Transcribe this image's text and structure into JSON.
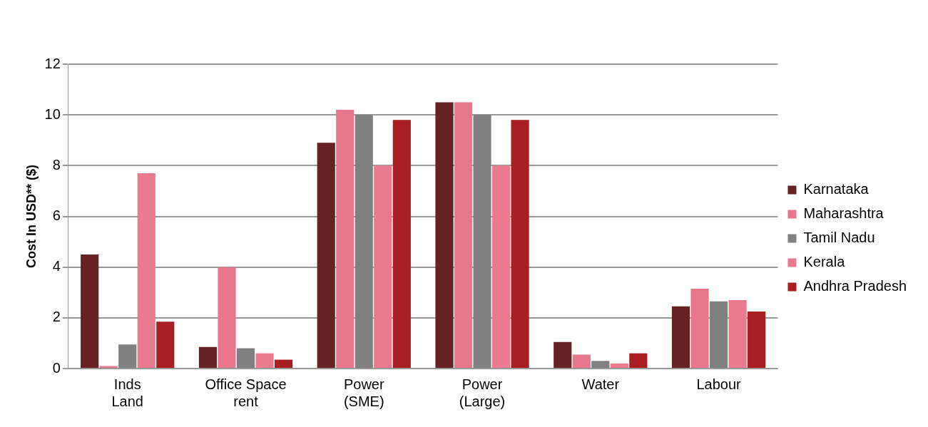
{
  "chart_data": {
    "type": "bar",
    "ylabel": "Cost In USD** ($)",
    "categories": [
      "Inds Land",
      "Office Space rent",
      "Power (SME)",
      "Power (Large)",
      "Water",
      "Labour"
    ],
    "series": [
      {
        "name": "Karnataka",
        "color": "#662222",
        "values": [
          4.5,
          0.85,
          8.9,
          10.5,
          1.05,
          2.45
        ]
      },
      {
        "name": "Maharashtra",
        "color": "#e8778e",
        "values": [
          0.1,
          4.0,
          10.2,
          10.5,
          0.55,
          3.15
        ]
      },
      {
        "name": "Tamil Nadu",
        "color": "#808080",
        "values": [
          0.95,
          0.8,
          10.0,
          10.0,
          0.3,
          2.65
        ]
      },
      {
        "name": "Kerala",
        "color": "#e97a90",
        "values": [
          7.7,
          0.6,
          8.0,
          8.0,
          0.2,
          2.7
        ]
      },
      {
        "name": "Andhra Pradesh",
        "color": "#a81e22",
        "values": [
          1.85,
          0.35,
          9.8,
          9.8,
          0.6,
          2.25
        ]
      }
    ],
    "ylim": [
      0,
      12
    ],
    "yticks": [
      0,
      2,
      4,
      6,
      8,
      10,
      12
    ],
    "grid": "y",
    "legend": "right"
  }
}
